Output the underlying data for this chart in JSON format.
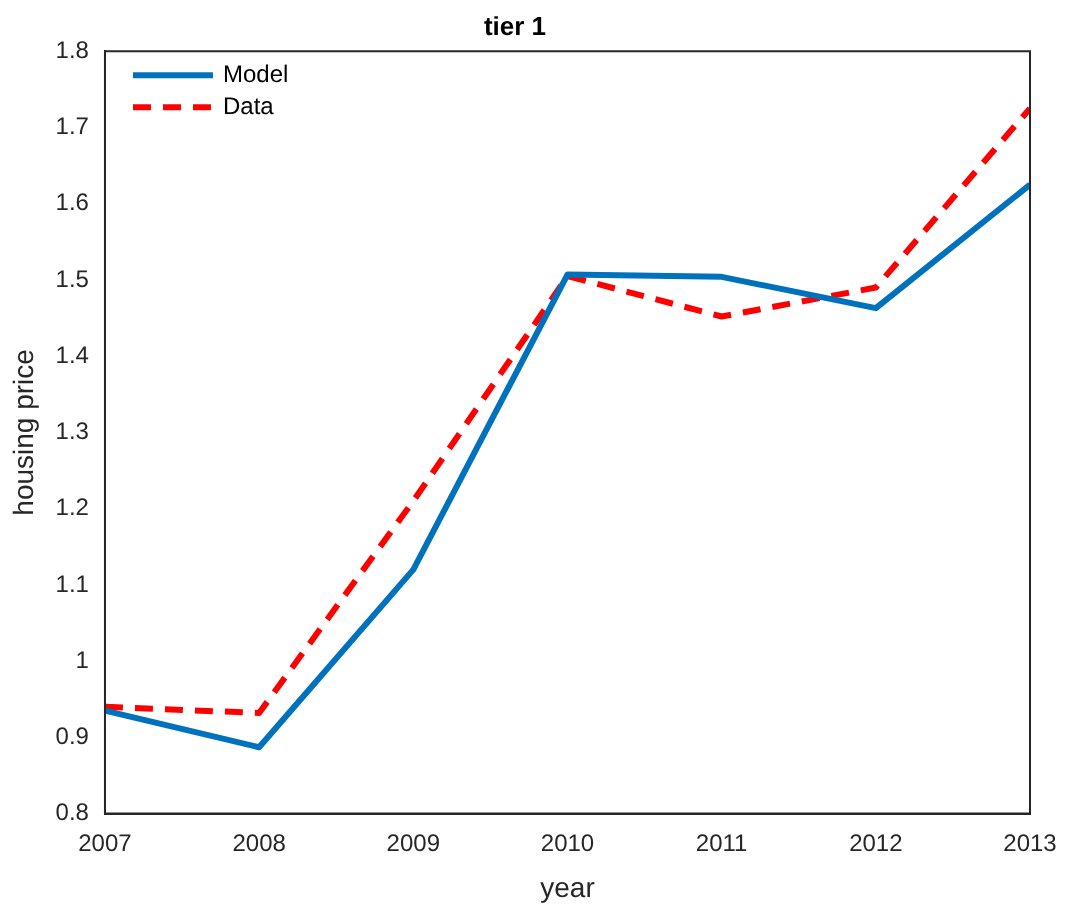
{
  "chart_data": {
    "type": "line",
    "title": "tier 1",
    "xlabel": "year",
    "ylabel": "housing price",
    "x": [
      2007,
      2008,
      2009,
      2010,
      2011,
      2012,
      2013
    ],
    "series": [
      {
        "name": "Model",
        "color": "#0072bd",
        "line_style": "solid",
        "values": [
          0.935,
          0.887,
          1.12,
          1.507,
          1.504,
          1.463,
          1.625
        ]
      },
      {
        "name": "Data",
        "color": "#ff0000",
        "line_style": "dashed",
        "values": [
          0.94,
          0.932,
          1.21,
          1.505,
          1.452,
          1.49,
          1.725
        ]
      }
    ],
    "xlim": [
      2007,
      2013
    ],
    "xticks": [
      2007,
      2008,
      2009,
      2010,
      2011,
      2012,
      2013
    ],
    "ylim": [
      0.8,
      1.8
    ],
    "yticks": [
      0.8,
      0.9,
      1,
      1.1,
      1.2,
      1.3,
      1.4,
      1.5,
      1.6,
      1.7,
      1.8
    ],
    "legend": "top left",
    "marker": "none"
  }
}
